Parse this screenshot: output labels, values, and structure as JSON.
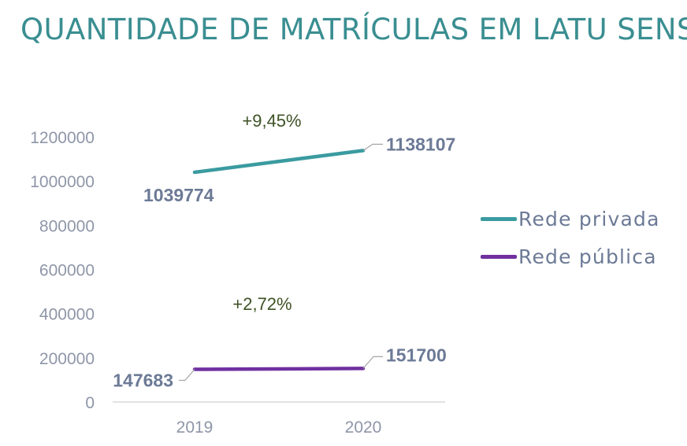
{
  "title": "QUANTIDADE DE MATRÍCULAS EM LATU SENSU",
  "chart_data": {
    "type": "line",
    "categories": [
      "2019",
      "2020"
    ],
    "series": [
      {
        "name": "Rede privada",
        "values": [
          1039774,
          1138107
        ],
        "color": "#3A9BA0",
        "change_label": "+9,45%"
      },
      {
        "name": "Rede pública",
        "values": [
          147683,
          151700
        ],
        "color": "#7030A0",
        "change_label": "+2,72%"
      }
    ],
    "yticks": [
      0,
      200000,
      400000,
      600000,
      800000,
      1000000,
      1200000
    ],
    "ylim": [
      0,
      1200000
    ],
    "grid": false,
    "legend_position": "right"
  }
}
